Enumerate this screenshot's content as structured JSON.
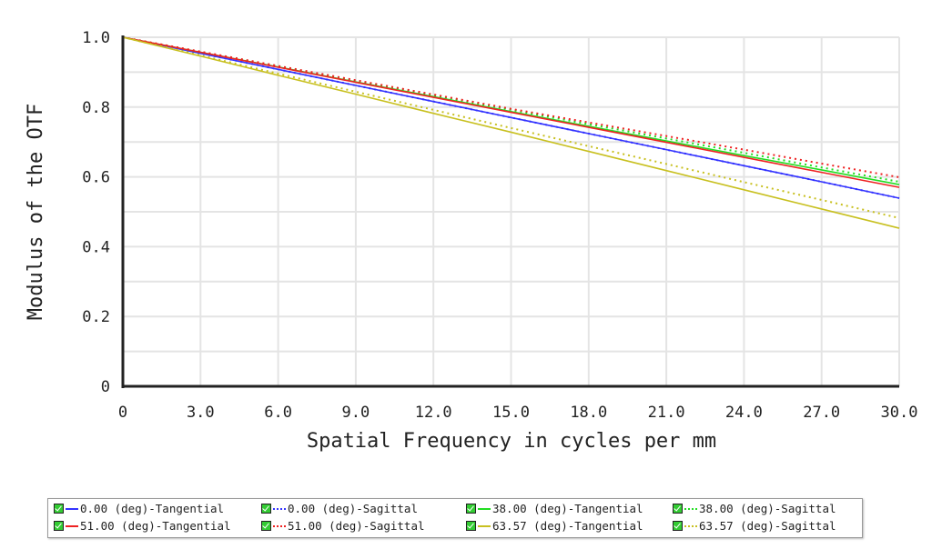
{
  "chart_data": {
    "type": "line",
    "title": "",
    "xlabel": "Spatial Frequency in cycles per mm",
    "ylabel": "Modulus of the OTF",
    "xlim": [
      0,
      30
    ],
    "ylim": [
      0,
      1
    ],
    "xticks": [
      "0",
      "3.0",
      "6.0",
      "9.0",
      "12.0",
      "15.0",
      "18.0",
      "21.0",
      "24.0",
      "27.0",
      "30.0"
    ],
    "yticks": [
      "0",
      "0.2",
      "0.4",
      "0.6",
      "0.8",
      "1.0"
    ],
    "grid": true,
    "legend_placement": "bottom",
    "x": [
      0,
      3,
      6,
      9,
      12,
      15,
      18,
      21,
      24,
      27,
      30
    ],
    "series": [
      {
        "name": "0.00 (deg)-Tangential",
        "color": "#3333ff",
        "style": "solid",
        "values": [
          1,
          0.954,
          0.908,
          0.862,
          0.816,
          0.77,
          0.724,
          0.678,
          0.632,
          0.586,
          0.539
        ]
      },
      {
        "name": "0.00 (deg)-Sagittal",
        "color": "#3333ff",
        "style": "dotted",
        "values": [
          1,
          0.954,
          0.908,
          0.862,
          0.816,
          0.77,
          0.724,
          0.678,
          0.632,
          0.586,
          0.539
        ]
      },
      {
        "name": "38.00 (deg)-Tangential",
        "color": "#22dd22",
        "style": "solid",
        "values": [
          1,
          0.957,
          0.915,
          0.872,
          0.83,
          0.787,
          0.745,
          0.703,
          0.661,
          0.62,
          0.578
        ]
      },
      {
        "name": "38.00 (deg)-Sagittal",
        "color": "#22dd22",
        "style": "dotted",
        "values": [
          1,
          0.958,
          0.917,
          0.875,
          0.834,
          0.792,
          0.751,
          0.71,
          0.669,
          0.627,
          0.586
        ]
      },
      {
        "name": "51.00 (deg)-Tangential",
        "color": "#ee2222",
        "style": "solid",
        "values": [
          1,
          0.957,
          0.914,
          0.871,
          0.828,
          0.785,
          0.742,
          0.699,
          0.656,
          0.613,
          0.57
        ]
      },
      {
        "name": "51.00 (deg)-Sagittal",
        "color": "#ee2222",
        "style": "dotted",
        "values": [
          1,
          0.959,
          0.918,
          0.877,
          0.836,
          0.795,
          0.756,
          0.717,
          0.678,
          0.638,
          0.599
        ]
      },
      {
        "name": "63.57 (deg)-Tangential",
        "color": "#c8c020",
        "style": "solid",
        "values": [
          1,
          0.946,
          0.891,
          0.837,
          0.782,
          0.728,
          0.673,
          0.618,
          0.563,
          0.508,
          0.453
        ]
      },
      {
        "name": "63.57 (deg)-Sagittal",
        "color": "#c8c020",
        "style": "dotted",
        "values": [
          1,
          0.948,
          0.896,
          0.844,
          0.792,
          0.74,
          0.688,
          0.637,
          0.585,
          0.534,
          0.482
        ]
      }
    ]
  }
}
